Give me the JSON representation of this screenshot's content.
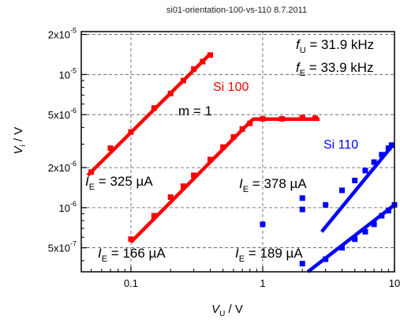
{
  "chart_data": {
    "type": "scatter",
    "title": "si01-orientation-100-vs-110     8.7.2011",
    "xlabel_main": "V",
    "xlabel_sub": "U",
    "xlabel_unit": " / V",
    "ylabel_main": "V",
    "ylabel_sub": "i",
    "ylabel_unit": " / V",
    "x_scale": "log",
    "y_scale": "log",
    "xlim": [
      0.042,
      10
    ],
    "ylim": [
      3.3e-07,
      2.1e-05
    ],
    "grid": true,
    "x_ticks": [
      {
        "value": 0.1,
        "label": "0.1"
      },
      {
        "value": 1,
        "label": "1"
      },
      {
        "value": 10,
        "label": "10"
      }
    ],
    "y_ticks": [
      {
        "value": 5e-07,
        "mant": "5x10",
        "exp": "-7"
      },
      {
        "value": 1e-06,
        "mant": "10",
        "exp": "-6"
      },
      {
        "value": 2e-06,
        "mant": "2x10",
        "exp": "-6"
      },
      {
        "value": 5e-06,
        "mant": "5x10",
        "exp": "-6"
      },
      {
        "value": 1e-05,
        "mant": "10",
        "exp": "-5"
      },
      {
        "value": 2e-05,
        "mant": "2x10",
        "exp": "-5"
      }
    ],
    "series": [
      {
        "color": "#ff0000",
        "points": [
          [
            0.05,
            1.85e-06
          ],
          [
            0.07,
            2.8e-06
          ],
          [
            0.1,
            3.7e-06
          ],
          [
            0.15,
            5.6e-06
          ],
          [
            0.2,
            7.2e-06
          ],
          [
            0.25,
            9e-06
          ],
          [
            0.3,
            1.1e-05
          ],
          [
            0.35,
            1.25e-05
          ],
          [
            0.4,
            1.4e-05
          ]
        ],
        "fit": [
          [
            0.047,
            1.75e-06
          ],
          [
            0.4,
            1.43e-05
          ]
        ]
      },
      {
        "color": "#ff0000",
        "points": [
          [
            0.1,
            5.8e-07
          ],
          [
            0.15,
            8.7e-07
          ],
          [
            0.2,
            1.2e-06
          ],
          [
            0.25,
            1.45e-06
          ],
          [
            0.3,
            1.75e-06
          ],
          [
            0.4,
            2.3e-06
          ],
          [
            0.5,
            2.85e-06
          ],
          [
            0.6,
            3.4e-06
          ],
          [
            0.7,
            3.9e-06
          ],
          [
            0.8,
            4.3e-06
          ],
          [
            1.0,
            4.65e-06
          ],
          [
            1.4,
            4.65e-06
          ],
          [
            2.0,
            4.75e-06
          ],
          [
            2.5,
            4.7e-06
          ]
        ],
        "fit": [
          [
            0.1,
            5.5e-07
          ],
          [
            0.8,
            4.4e-06
          ],
          [
            0.85,
            4.62e-06
          ],
          [
            2.7,
            4.62e-06
          ]
        ]
      },
      {
        "color": "#0000ff",
        "points": [
          [
            1.0,
            7.5e-07
          ],
          [
            2.0,
            1.18e-06
          ],
          [
            3.0,
            1.05e-06
          ],
          [
            4.0,
            1.35e-06
          ],
          [
            5.0,
            1.6e-06
          ],
          [
            6.0,
            1.9e-06
          ],
          [
            7.0,
            2.2e-06
          ],
          [
            8.0,
            2.5e-06
          ],
          [
            9.0,
            2.8e-06
          ],
          [
            9.5,
            2.95e-06
          ]
        ],
        "fit": [
          [
            2.8,
            6.6e-07
          ],
          [
            9.7,
            2.95e-06
          ]
        ]
      },
      {
        "color": "#0000ff",
        "points": [
          [
            2.0,
            9.7e-07
          ],
          [
            2.0,
            3.8e-07
          ],
          [
            3.0,
            4.1e-07
          ],
          [
            4.0,
            5e-07
          ],
          [
            5.0,
            5.8e-07
          ],
          [
            6.0,
            6.6e-07
          ],
          [
            7.0,
            7.5e-07
          ],
          [
            8.0,
            8.7e-07
          ],
          [
            9.0,
            9.5e-07
          ],
          [
            10.0,
            1.05e-06
          ]
        ],
        "fit": [
          [
            2.2,
            3.3e-07
          ],
          [
            10,
            1.05e-06
          ]
        ]
      }
    ],
    "annotations": {
      "fU_main": "f",
      "fU_sub": "U",
      "fU_val": " = 31.9 kHz",
      "fE_main": "f",
      "fE_sub": "E",
      "fE_val": " = 33.9 kHz",
      "si100": "Si 100",
      "si110": "Si 110",
      "slope": "m = 1",
      "ie1_main": "I",
      "ie1_sub": "E",
      "ie1_val": " = 325 µA",
      "ie2_main": "I",
      "ie2_sub": "E",
      "ie2_val": " = 166 µA",
      "ie3_main": "I",
      "ie3_sub": "E",
      "ie3_val": " = 378 µA",
      "ie4_main": "I",
      "ie4_sub": "E",
      "ie4_val": " = 189 µA"
    },
    "colors": {
      "red": "#ff0000",
      "blue": "#0000ff"
    }
  }
}
